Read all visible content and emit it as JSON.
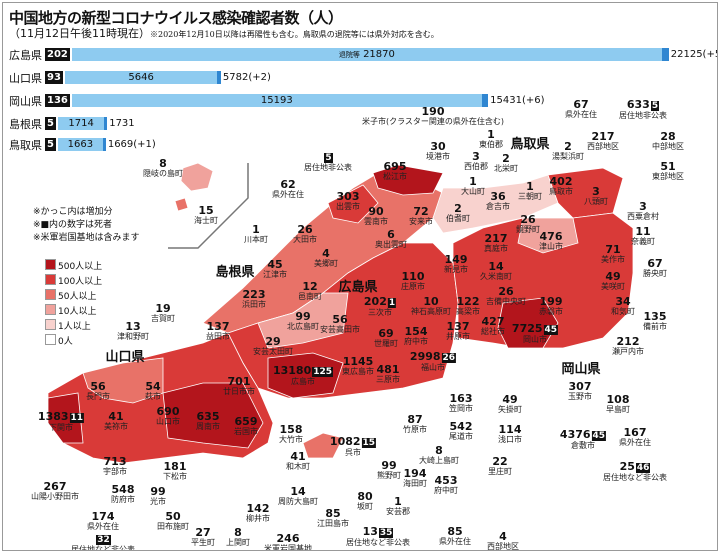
{
  "header": {
    "title": "中国地方の新型コロナウイルス感染確認者数（人）",
    "subtitle": "（11月12日午後11時現在）",
    "note": "※2020年12月10日以降は再陽性も含む。鳥取県の退院等には県外対応を含む。"
  },
  "bars": [
    {
      "pref": "広島県",
      "deaths": "202",
      "recovered": "21870",
      "recovered_label": "退院等",
      "total": "22125(+5)",
      "recovered_value": 21870,
      "total_value": 22125
    },
    {
      "pref": "山口県",
      "deaths": "93",
      "recovered": "5646",
      "recovered_label": "",
      "total": "5782(+2)",
      "recovered_value": 5646,
      "total_value": 5782
    },
    {
      "pref": "岡山県",
      "deaths": "136",
      "recovered": "15193",
      "recovered_label": "",
      "total": "15431(+6)",
      "recovered_value": 15193,
      "total_value": 15431
    },
    {
      "pref": "島根県",
      "deaths": "5",
      "recovered": "1714",
      "recovered_label": "",
      "total": "1731",
      "recovered_value": 1714,
      "total_value": 1731
    },
    {
      "pref": "鳥取県",
      "deaths": "5",
      "recovered": "1663",
      "recovered_label": "",
      "total": "1669(+1)",
      "recovered_value": 1663,
      "total_value": 1669
    }
  ],
  "notes": [
    "※かっこ内は増加分",
    "※■内の数字は死者",
    "※米軍岩国基地は含みます"
  ],
  "legend": [
    {
      "label": "500人以上",
      "color": "#b3151c"
    },
    {
      "label": "100人以上",
      "color": "#d93a38"
    },
    {
      "label": "50人以上",
      "color": "#e87268"
    },
    {
      "label": "10人以上",
      "color": "#f0a29c"
    },
    {
      "label": "1人以上",
      "color": "#f8d2ce"
    },
    {
      "label": "0人",
      "color": "#ffffff"
    }
  ],
  "prefectures": [
    "島根県",
    "広島県",
    "鳥取県",
    "山口県",
    "岡山県"
  ],
  "municipalities": [
    {
      "name": "隠岐の島町",
      "count": "8"
    },
    {
      "name": "海士町",
      "count": "15"
    },
    {
      "name": "居住地非公表",
      "count": "",
      "deaths": "5"
    },
    {
      "name": "県外在住",
      "count": "62"
    },
    {
      "name": "出雲市",
      "count": "303"
    },
    {
      "name": "松江市",
      "count": "695"
    },
    {
      "name": "雲南市",
      "count": "90"
    },
    {
      "name": "安来市",
      "count": "72"
    },
    {
      "name": "奥出雲町",
      "count": "6"
    },
    {
      "name": "川本町",
      "count": "1"
    },
    {
      "name": "大田市",
      "count": "26"
    },
    {
      "name": "美郷町",
      "count": "4"
    },
    {
      "name": "江津市",
      "count": "45"
    },
    {
      "name": "邑南町",
      "count": "12"
    },
    {
      "name": "浜田市",
      "count": "223"
    },
    {
      "name": "益田市",
      "count": "137"
    },
    {
      "name": "吉賀町",
      "count": "19"
    },
    {
      "name": "津和野町",
      "count": "13"
    },
    {
      "name": "北広島町",
      "count": "99"
    },
    {
      "name": "安芸太田町",
      "count": "29"
    },
    {
      "name": "安芸高田市",
      "count": "56"
    },
    {
      "name": "三次市",
      "count": "202",
      "deaths": "1"
    },
    {
      "name": "庄原市",
      "count": "110"
    },
    {
      "name": "神石高原町",
      "count": "10"
    },
    {
      "name": "世羅町",
      "count": "69"
    },
    {
      "name": "府中市",
      "count": "154"
    },
    {
      "name": "東広島市",
      "count": "1145"
    },
    {
      "name": "広島市",
      "count": "13180",
      "deaths": "125"
    },
    {
      "name": "廿日市市",
      "count": "701"
    },
    {
      "name": "三原市",
      "count": "481"
    },
    {
      "name": "福山市",
      "count": "2998",
      "deaths": "26"
    },
    {
      "name": "井原市",
      "count": "137"
    },
    {
      "name": "高梁市",
      "count": "122"
    },
    {
      "name": "総社市",
      "count": "427"
    },
    {
      "name": "岡山市",
      "count": "7725",
      "deaths": "45"
    },
    {
      "name": "吉備中央町",
      "count": "26"
    },
    {
      "name": "赤磐市",
      "count": "199"
    },
    {
      "name": "久米南町",
      "count": "14"
    },
    {
      "name": "新見市",
      "count": "149"
    },
    {
      "name": "真庭市",
      "count": "217"
    },
    {
      "name": "鏡野町",
      "count": "26"
    },
    {
      "name": "津山市",
      "count": "476"
    },
    {
      "name": "倉吉市",
      "count": "36"
    },
    {
      "name": "三朝町",
      "count": "1"
    },
    {
      "name": "鳥取市",
      "count": "402"
    },
    {
      "name": "八頭町",
      "count": "3"
    },
    {
      "name": "大山町",
      "count": "1"
    },
    {
      "name": "伯耆町",
      "count": "2"
    },
    {
      "name": "境港市",
      "count": "30"
    },
    {
      "name": "西伯郡",
      "count": "3"
    },
    {
      "name": "東伯郡",
      "count": "1"
    },
    {
      "name": "北栄町",
      "count": "2"
    },
    {
      "name": "湯梨浜町",
      "count": "2"
    },
    {
      "name": "米子市(クラスター関連の県外在住含む)",
      "count": "190"
    },
    {
      "name": "県外在住",
      "count": "67"
    },
    {
      "name": "居住地非公表",
      "count": "633",
      "deaths": "5"
    },
    {
      "name": "西部地区",
      "count": "217"
    },
    {
      "name": "中部地区",
      "count": "28"
    },
    {
      "name": "東部地区",
      "count": "51"
    },
    {
      "name": "西粟倉村",
      "count": "3"
    },
    {
      "name": "奈義町",
      "count": "11"
    },
    {
      "name": "美作市",
      "count": "71"
    },
    {
      "name": "勝央町",
      "count": "67"
    },
    {
      "name": "美咲町",
      "count": "49"
    },
    {
      "name": "和気町",
      "count": "34"
    },
    {
      "name": "備前市",
      "count": "135"
    },
    {
      "name": "瀬戸内市",
      "count": "212"
    },
    {
      "name": "玉野市",
      "count": "307"
    },
    {
      "name": "早島町",
      "count": "108"
    },
    {
      "name": "倉敷市",
      "count": "4376",
      "deaths": "45"
    },
    {
      "name": "県外在住",
      "count": "167"
    },
    {
      "name": "居住地など非公表",
      "count": "25",
      "deaths": "46"
    },
    {
      "name": "矢掛町",
      "count": "49"
    },
    {
      "name": "浅口市",
      "count": "114"
    },
    {
      "name": "里庄町",
      "count": "22"
    },
    {
      "name": "西部地区",
      "count": "4"
    },
    {
      "name": "笠岡市",
      "count": "163"
    },
    {
      "name": "尾道市",
      "count": "542"
    },
    {
      "name": "竹原市",
      "count": "87"
    },
    {
      "name": "大崎上島町",
      "count": "8"
    },
    {
      "name": "呉市",
      "count": "1082",
      "deaths": "15"
    },
    {
      "name": "熊野町",
      "count": "99"
    },
    {
      "name": "海田町",
      "count": "194"
    },
    {
      "name": "府中町",
      "count": "453"
    },
    {
      "name": "坂町",
      "count": "80"
    },
    {
      "name": "安芸郡",
      "count": "1"
    },
    {
      "name": "江田島市",
      "count": "85"
    },
    {
      "name": "居住地など非公表",
      "count": "13",
      "deaths": "35"
    },
    {
      "name": "県外在住",
      "count": "85"
    },
    {
      "name": "米軍岩国基地",
      "count": "246"
    },
    {
      "name": "柳井市",
      "count": "142"
    },
    {
      "name": "上関町",
      "count": "8"
    },
    {
      "name": "平生町",
      "count": "27"
    },
    {
      "name": "周防大島町",
      "count": "14"
    },
    {
      "name": "和木町",
      "count": "41"
    },
    {
      "name": "大竹市",
      "count": "158"
    },
    {
      "name": "岩国市",
      "count": "659"
    },
    {
      "name": "周南市",
      "count": "635"
    },
    {
      "name": "山口市",
      "count": "690"
    },
    {
      "name": "萩市",
      "count": "54"
    },
    {
      "name": "長門市",
      "count": "56"
    },
    {
      "name": "美祢市",
      "count": "41"
    },
    {
      "name": "下関市",
      "count": "1383",
      "deaths": "11"
    },
    {
      "name": "宇部市",
      "count": "713"
    },
    {
      "name": "下松市",
      "count": "181"
    },
    {
      "name": "山陽小野田市",
      "count": "267"
    },
    {
      "name": "防府市",
      "count": "548"
    },
    {
      "name": "光市",
      "count": "99"
    },
    {
      "name": "県外在住",
      "count": "174"
    },
    {
      "name": "居住地など非公表",
      "count": "",
      "deaths": "32"
    },
    {
      "name": "田布施町",
      "count": "50"
    }
  ]
}
